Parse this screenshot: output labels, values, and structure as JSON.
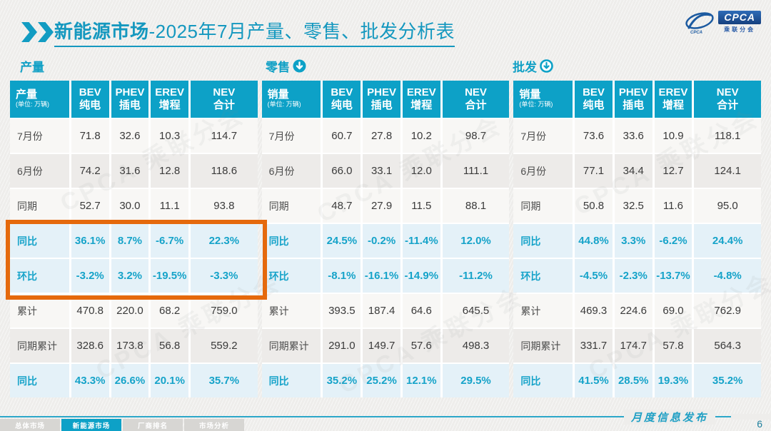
{
  "header": {
    "title_bold": "新能源市场",
    "title_rest": "-2025年7月产量、零售、批发分析表"
  },
  "logo": {
    "text": "CPCA",
    "subtext": "乘联分会"
  },
  "watermark": "CPCA 乘联分会",
  "colors": {
    "teal": "#0da1c7",
    "title_teal": "#1598bf",
    "pct_teal": "#16a3c9",
    "highlight_orange": "#e5690c",
    "pct_row_bg": "#e4f1f8"
  },
  "tables": [
    {
      "section_label": "产量",
      "icon": null,
      "corner_label": "产量",
      "corner_note": "(单位: 万辆)",
      "columns": [
        [
          "BEV",
          "纯电"
        ],
        [
          "PHEV",
          "插电"
        ],
        [
          "EREV",
          "增程"
        ],
        [
          "NEV",
          "合计"
        ]
      ],
      "rows": [
        {
          "label": "7月份",
          "type": "data",
          "values": [
            "71.8",
            "32.6",
            "10.3",
            "114.7"
          ]
        },
        {
          "label": "6月份",
          "type": "alt",
          "values": [
            "74.2",
            "31.6",
            "12.8",
            "118.6"
          ]
        },
        {
          "label": "同期",
          "type": "data",
          "values": [
            "52.7",
            "30.0",
            "11.1",
            "93.8"
          ]
        },
        {
          "label": "同比",
          "type": "pct",
          "values": [
            "36.1%",
            "8.7%",
            "-6.7%",
            "22.3%"
          ]
        },
        {
          "label": "环比",
          "type": "pct",
          "values": [
            "-3.2%",
            "3.2%",
            "-19.5%",
            "-3.3%"
          ]
        },
        {
          "label": "累计",
          "type": "data",
          "values": [
            "470.8",
            "220.0",
            "68.2",
            "759.0"
          ]
        },
        {
          "label": "同期累计",
          "type": "alt",
          "values": [
            "328.6",
            "173.8",
            "56.8",
            "559.2"
          ]
        },
        {
          "label": "同比",
          "type": "pct",
          "values": [
            "43.3%",
            "26.6%",
            "20.1%",
            "35.7%"
          ]
        }
      ]
    },
    {
      "section_label": "零售",
      "icon": "down-circle-filled",
      "corner_label": "销量",
      "corner_note": "(单位: 万辆)",
      "columns": [
        [
          "BEV",
          "纯电"
        ],
        [
          "PHEV",
          "插电"
        ],
        [
          "EREV",
          "增程"
        ],
        [
          "NEV",
          "合计"
        ]
      ],
      "rows": [
        {
          "label": "7月份",
          "type": "data",
          "values": [
            "60.7",
            "27.8",
            "10.2",
            "98.7"
          ]
        },
        {
          "label": "6月份",
          "type": "alt",
          "values": [
            "66.0",
            "33.1",
            "12.0",
            "111.1"
          ]
        },
        {
          "label": "同期",
          "type": "data",
          "values": [
            "48.7",
            "27.9",
            "11.5",
            "88.1"
          ]
        },
        {
          "label": "同比",
          "type": "pct",
          "values": [
            "24.5%",
            "-0.2%",
            "-11.4%",
            "12.0%"
          ]
        },
        {
          "label": "环比",
          "type": "pct",
          "values": [
            "-8.1%",
            "-16.1%",
            "-14.9%",
            "-11.2%"
          ]
        },
        {
          "label": "累计",
          "type": "data",
          "values": [
            "393.5",
            "187.4",
            "64.6",
            "645.5"
          ]
        },
        {
          "label": "同期累计",
          "type": "alt",
          "values": [
            "291.0",
            "149.7",
            "57.6",
            "498.3"
          ]
        },
        {
          "label": "同比",
          "type": "pct",
          "values": [
            "35.2%",
            "25.2%",
            "12.1%",
            "29.5%"
          ]
        }
      ]
    },
    {
      "section_label": "批发",
      "icon": "down-circle-outline",
      "corner_label": "销量",
      "corner_note": "(单位: 万辆)",
      "columns": [
        [
          "BEV",
          "纯电"
        ],
        [
          "PHEV",
          "插电"
        ],
        [
          "EREV",
          "增程"
        ],
        [
          "NEV",
          "合计"
        ]
      ],
      "rows": [
        {
          "label": "7月份",
          "type": "data",
          "values": [
            "73.6",
            "33.6",
            "10.9",
            "118.1"
          ]
        },
        {
          "label": "6月份",
          "type": "alt",
          "values": [
            "77.1",
            "34.4",
            "12.7",
            "124.1"
          ]
        },
        {
          "label": "同期",
          "type": "data",
          "values": [
            "50.8",
            "32.5",
            "11.6",
            "95.0"
          ]
        },
        {
          "label": "同比",
          "type": "pct",
          "values": [
            "44.8%",
            "3.3%",
            "-6.2%",
            "24.4%"
          ]
        },
        {
          "label": "环比",
          "type": "pct",
          "values": [
            "-4.5%",
            "-2.3%",
            "-13.7%",
            "-4.8%"
          ]
        },
        {
          "label": "累计",
          "type": "data",
          "values": [
            "469.3",
            "224.6",
            "69.0",
            "762.9"
          ]
        },
        {
          "label": "同期累计",
          "type": "alt",
          "values": [
            "331.7",
            "174.7",
            "57.8",
            "564.3"
          ]
        },
        {
          "label": "同比",
          "type": "pct",
          "values": [
            "41.5%",
            "28.5%",
            "19.3%",
            "35.2%"
          ]
        }
      ]
    }
  ],
  "tabs": [
    {
      "label": "总体市场",
      "active": false
    },
    {
      "label": "新能源市场",
      "active": true
    },
    {
      "label": "厂商排名",
      "active": false
    },
    {
      "label": "市场分析",
      "active": false
    }
  ],
  "footer": {
    "label": "月度信息发布",
    "page": "6"
  }
}
